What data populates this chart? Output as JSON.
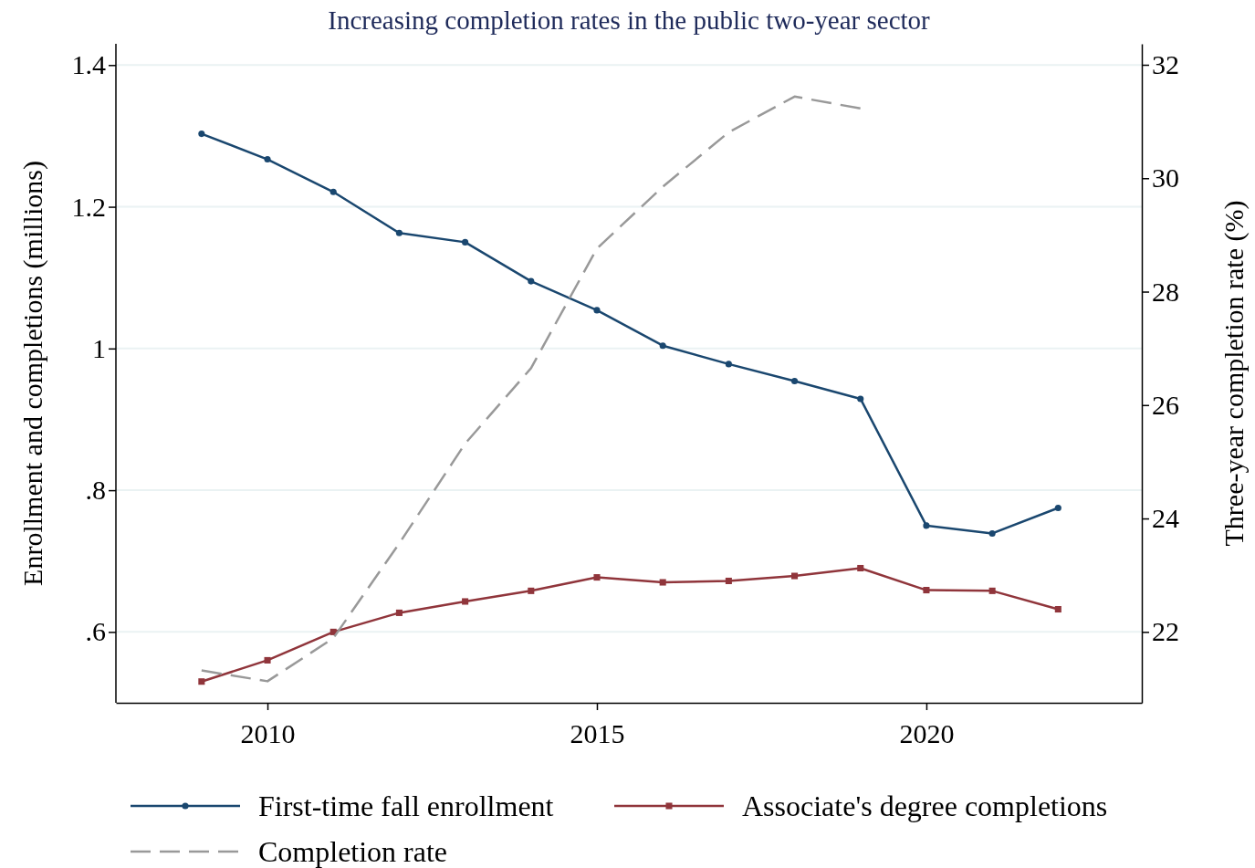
{
  "chart_data": {
    "type": "line",
    "title": "Increasing completion rates in the public two-year sector",
    "ylabel": "Enrollment and completions (millions)",
    "y2label": "Three-year completion rate (%)",
    "x": [
      2009,
      2010,
      2011,
      2012,
      2013,
      2014,
      2015,
      2016,
      2017,
      2018,
      2019,
      2020,
      2021,
      2022
    ],
    "xlim": [
      2007.7,
      2023.27
    ],
    "xticks": [
      2010,
      2015,
      2020
    ],
    "ylim": [
      0.5,
      1.43
    ],
    "yticks": [
      {
        "value": 0.6,
        "label": ".6"
      },
      {
        "value": 0.8,
        "label": ".8"
      },
      1,
      1.2,
      1.4
    ],
    "y2lim": [
      20.75,
      32.37
    ],
    "y2ticks": [
      22,
      24,
      26,
      28,
      30,
      32
    ],
    "grid": "y",
    "legend": "bottom",
    "series": [
      {
        "name": "First-time fall enrollment",
        "color": "#1a476f",
        "marker": "circle",
        "line_style": "solid",
        "values": [
          1.303,
          1.267,
          1.221,
          1.163,
          1.15,
          1.095,
          1.054,
          1.004,
          0.978,
          0.954,
          0.929,
          0.75,
          0.739,
          0.775
        ]
      },
      {
        "name": "Associate's degree completions",
        "color": "#90353b",
        "marker": "square",
        "line_style": "solid",
        "values": [
          0.53,
          0.56,
          0.6,
          0.627,
          0.643,
          0.658,
          0.677,
          0.67,
          0.672,
          0.679,
          0.69,
          0.659,
          0.658,
          0.632
        ]
      },
      {
        "name": "Completion rate",
        "color": "#999999",
        "marker": "none",
        "line_style": "dashed",
        "axis": "y2",
        "x": [
          2009,
          2010,
          2011,
          2012,
          2013,
          2014,
          2015,
          2016,
          2017,
          2018,
          2019
        ],
        "values": [
          21.32,
          21.13,
          21.89,
          23.56,
          25.32,
          26.65,
          28.76,
          29.85,
          30.81,
          31.44,
          31.23
        ]
      }
    ]
  }
}
